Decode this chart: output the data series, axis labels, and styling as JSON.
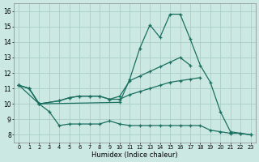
{
  "x": [
    0,
    1,
    2,
    3,
    4,
    5,
    6,
    7,
    8,
    9,
    10,
    11,
    12,
    13,
    14,
    15,
    16,
    17,
    18,
    19,
    20,
    21,
    22,
    23
  ],
  "line_spike": [
    11.2,
    11.0,
    10.0,
    null,
    null,
    null,
    null,
    null,
    null,
    null,
    10.1,
    11.6,
    13.6,
    15.1,
    14.3,
    15.8,
    15.8,
    14.2,
    12.5,
    11.4,
    9.5,
    8.2,
    8.1,
    8.0
  ],
  "line_upper": [
    11.2,
    null,
    10.0,
    null,
    10.2,
    10.4,
    10.5,
    10.5,
    10.5,
    10.3,
    10.5,
    11.5,
    11.8,
    12.1,
    12.4,
    12.7,
    13.0,
    12.5,
    null,
    null,
    null,
    null,
    null,
    null
  ],
  "line_mid": [
    11.2,
    11.0,
    10.0,
    null,
    10.2,
    10.4,
    10.5,
    10.5,
    10.5,
    10.3,
    10.3,
    10.6,
    10.8,
    11.0,
    11.2,
    11.4,
    11.5,
    11.6,
    11.7,
    null,
    null,
    null,
    null,
    null
  ],
  "line_low": [
    11.2,
    11.0,
    10.0,
    9.5,
    8.6,
    8.7,
    8.7,
    8.7,
    8.7,
    8.9,
    8.7,
    8.6,
    8.6,
    8.6,
    8.6,
    8.6,
    8.6,
    8.6,
    8.6,
    8.3,
    8.2,
    8.1,
    8.1,
    8.0
  ],
  "bg_color": "#cce8e2",
  "grid_color": "#aacdc8",
  "line_color": "#1a7060",
  "xlabel": "Humidex (Indice chaleur)",
  "ylim": [
    7.5,
    16.5
  ],
  "xlim": [
    -0.5,
    23.5
  ],
  "yticks": [
    8,
    9,
    10,
    11,
    12,
    13,
    14,
    15,
    16
  ],
  "xticks": [
    0,
    1,
    2,
    3,
    4,
    5,
    6,
    7,
    8,
    9,
    10,
    11,
    12,
    13,
    14,
    15,
    16,
    17,
    18,
    19,
    20,
    21,
    22,
    23
  ],
  "xtick_labels": [
    "0",
    "1",
    "2",
    "3",
    "4",
    "5",
    "6",
    "7",
    "8",
    "9",
    "10",
    "11",
    "12",
    "13",
    "14",
    "15",
    "16",
    "17",
    "18",
    "19",
    "20",
    "21",
    "22",
    "23"
  ]
}
